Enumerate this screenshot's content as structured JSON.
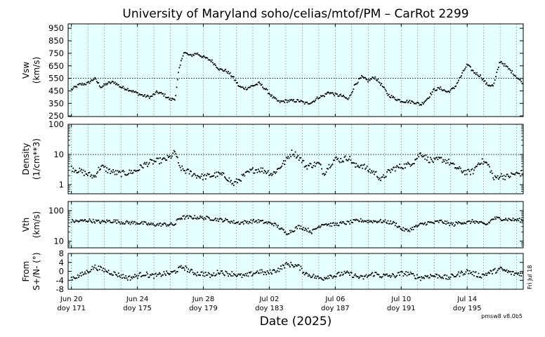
{
  "title": "University of Maryland  soho/celias/mtof/PM – CarRot 2299",
  "x_title": "Date (2025)",
  "version_label": "pmsw8 v8.0b5",
  "side_label": "Fri Jul 18",
  "colors": {
    "panel_bg": "#e6ffff",
    "grid": "#8a8a8a",
    "points": "#000000",
    "axis": "#000000"
  },
  "chart_data": {
    "type": "scatter",
    "x_unit": "day of year 2025",
    "x_range": [
      170.8,
      198.4
    ],
    "x_ticks": [
      {
        "doy": 171,
        "date": "Jun 20",
        "doy_label": "doy 171"
      },
      {
        "doy": 175,
        "date": "Jun 24",
        "doy_label": "doy 175"
      },
      {
        "doy": 179,
        "date": "Jun 28",
        "doy_label": "doy 179"
      },
      {
        "doy": 183,
        "date": "Jul 02",
        "doy_label": "doy 183"
      },
      {
        "doy": 187,
        "date": "Jul 06",
        "doy_label": "doy 187"
      },
      {
        "doy": 191,
        "date": "Jul 10",
        "doy_label": "doy 191"
      },
      {
        "doy": 195,
        "date": "Jul 14",
        "doy_label": "doy 195"
      }
    ],
    "panels": [
      {
        "id": "vsw",
        "ylabel": [
          "Vsw",
          "(km/s)"
        ],
        "scale": "linear",
        "ylim": [
          245,
          985
        ],
        "ticks": [
          250,
          350,
          450,
          550,
          650,
          750,
          850,
          950
        ],
        "reference_line": 550,
        "x": [
          171,
          171.5,
          172,
          172.4,
          172.8,
          173.2,
          173.6,
          174,
          174.5,
          175,
          175.4,
          175.8,
          176.2,
          176.6,
          177,
          177.3,
          177.5,
          177.8,
          178.2,
          178.6,
          179,
          179.5,
          180,
          180.4,
          180.8,
          181.2,
          181.6,
          182,
          182.4,
          182.8,
          183.2,
          183.6,
          184,
          184.4,
          184.8,
          185.2,
          185.6,
          186,
          186.3,
          186.6,
          187,
          187.4,
          187.8,
          188.2,
          188.6,
          189,
          189.4,
          189.8,
          190.2,
          190.6,
          191,
          191.4,
          191.8,
          192.2,
          192.6,
          193,
          193.4,
          193.8,
          194.2,
          194.6,
          195,
          195.4,
          195.8,
          196.2,
          196.6,
          197,
          197.4,
          197.8,
          198.3
        ],
        "y": [
          460,
          500,
          510,
          550,
          480,
          510,
          520,
          480,
          460,
          430,
          410,
          400,
          440,
          420,
          380,
          390,
          600,
          760,
          730,
          750,
          720,
          690,
          620,
          610,
          560,
          480,
          470,
          490,
          510,
          460,
          400,
          360,
          370,
          370,
          370,
          350,
          360,
          400,
          410,
          440,
          420,
          410,
          380,
          500,
          560,
          530,
          560,
          500,
          420,
          390,
          370,
          365,
          360,
          340,
          390,
          460,
          470,
          440,
          470,
          560,
          660,
          600,
          570,
          500,
          490,
          690,
          640,
          590,
          520
        ],
        "jitter": 12
      },
      {
        "id": "density",
        "ylabel": [
          "Density",
          "(1/cm**3)"
        ],
        "scale": "log",
        "ylim": [
          0.5,
          100
        ],
        "ticks": [
          1,
          10,
          100
        ],
        "reference_line": 10,
        "x": [
          171,
          171.5,
          172,
          172.4,
          172.8,
          173.2,
          173.6,
          174,
          174.5,
          175,
          175.4,
          175.8,
          176.2,
          176.6,
          177,
          177.3,
          177.5,
          177.8,
          178.2,
          178.6,
          179,
          179.5,
          180,
          180.4,
          180.8,
          181.2,
          181.6,
          182,
          182.4,
          182.8,
          183.2,
          183.6,
          184,
          184.4,
          184.8,
          185.2,
          185.6,
          186,
          186.3,
          186.6,
          187,
          187.4,
          187.8,
          188.2,
          188.6,
          189,
          189.4,
          189.8,
          190.2,
          190.6,
          191,
          191.4,
          191.8,
          192.2,
          192.6,
          193,
          193.4,
          193.8,
          194.2,
          194.6,
          195,
          195.4,
          195.8,
          196.2,
          196.6,
          197,
          197.4,
          197.8,
          198.3
        ],
        "y": [
          3.5,
          2.8,
          2.2,
          1.8,
          4,
          3,
          2.5,
          2.3,
          2.5,
          3,
          4.5,
          5.5,
          6,
          6.5,
          8,
          12,
          4,
          3,
          2.5,
          2,
          1.8,
          2,
          2.2,
          1.8,
          1,
          1.5,
          2.2,
          3,
          3.2,
          2.8,
          2.2,
          3.5,
          6,
          12,
          8,
          4,
          4.5,
          5,
          2.2,
          4,
          7,
          6.5,
          8,
          4,
          4.5,
          3,
          2.5,
          1.4,
          2.5,
          3.5,
          4,
          4.5,
          6,
          11,
          7,
          6,
          7,
          6,
          4,
          3,
          2.5,
          2.8,
          6,
          5,
          1.5,
          2,
          1.8,
          2.2,
          2.4
        ],
        "jitter": 0.1
      },
      {
        "id": "vth",
        "ylabel": [
          "Vth",
          "(km/s)"
        ],
        "scale": "log",
        "ylim": [
          6,
          200
        ],
        "ticks": [
          10,
          100
        ],
        "reference_line": null,
        "x": [
          171,
          171.5,
          172,
          172.4,
          172.8,
          173.2,
          173.6,
          174,
          174.5,
          175,
          175.4,
          175.8,
          176.2,
          176.6,
          177,
          177.3,
          177.5,
          177.8,
          178.2,
          178.6,
          179,
          179.5,
          180,
          180.4,
          180.8,
          181.2,
          181.6,
          182,
          182.4,
          182.8,
          183.2,
          183.6,
          184,
          184.4,
          184.8,
          185.2,
          185.6,
          186,
          186.3,
          186.6,
          187,
          187.4,
          187.8,
          188.2,
          188.6,
          189,
          189.4,
          189.8,
          190.2,
          190.6,
          191,
          191.4,
          191.8,
          192.2,
          192.6,
          193,
          193.4,
          193.8,
          194.2,
          194.6,
          195,
          195.4,
          195.8,
          196.2,
          196.6,
          197,
          197.4,
          197.8,
          198.3
        ],
        "y": [
          45,
          45,
          48,
          45,
          42,
          45,
          45,
          42,
          40,
          40,
          38,
          35,
          35,
          35,
          35,
          35,
          55,
          60,
          60,
          60,
          58,
          55,
          50,
          48,
          42,
          40,
          42,
          45,
          45,
          40,
          38,
          28,
          18,
          22,
          30,
          25,
          20,
          30,
          38,
          35,
          35,
          38,
          40,
          45,
          48,
          45,
          45,
          45,
          42,
          38,
          25,
          22,
          28,
          35,
          40,
          40,
          45,
          38,
          35,
          42,
          40,
          45,
          38,
          35,
          55,
          55,
          52,
          50,
          48
        ],
        "jitter": 0.06
      },
      {
        "id": "from",
        "ylabel": [
          "From",
          "S+/N- (°)"
        ],
        "scale": "linear",
        "ylim": [
          -8,
          8
        ],
        "ticks": [
          -8,
          -4,
          0,
          4,
          8
        ],
        "reference_line": null,
        "x": [
          171,
          171.5,
          172,
          172.4,
          172.8,
          173.2,
          173.6,
          174,
          174.5,
          175,
          175.4,
          175.8,
          176.2,
          176.6,
          177,
          177.3,
          177.5,
          177.8,
          178.2,
          178.6,
          179,
          179.5,
          180,
          180.4,
          180.8,
          181.2,
          181.6,
          182,
          182.4,
          182.8,
          183.2,
          183.6,
          184,
          184.4,
          184.8,
          185.2,
          185.6,
          186,
          186.3,
          186.6,
          187,
          187.4,
          187.8,
          188.2,
          188.6,
          189,
          189.4,
          189.8,
          190.2,
          190.6,
          191,
          191.4,
          191.8,
          192.2,
          192.6,
          193,
          193.4,
          193.8,
          194.2,
          194.6,
          195,
          195.4,
          195.8,
          196.2,
          196.6,
          197,
          197.4,
          197.8,
          198.3
        ],
        "y": [
          -3,
          -2,
          0,
          2,
          1,
          0,
          -1,
          -2,
          -3,
          -2,
          -1,
          -2,
          -2,
          -1,
          -1,
          0,
          1,
          2,
          0,
          -1,
          -1,
          -2,
          0,
          -1,
          -1,
          -2,
          -2,
          -1,
          0,
          -1,
          0,
          1,
          3,
          3,
          2,
          -1,
          -2,
          -3,
          -3,
          -2,
          -2,
          -1,
          -1,
          -2,
          -3,
          -2,
          -1,
          -2,
          -2,
          -2,
          -1,
          -1,
          -2,
          -3,
          -2,
          -2,
          -2,
          -3,
          -2,
          -1,
          0,
          -1,
          -2,
          -1,
          0,
          1,
          0,
          -1,
          -1
        ],
        "jitter": 1.1
      }
    ]
  }
}
